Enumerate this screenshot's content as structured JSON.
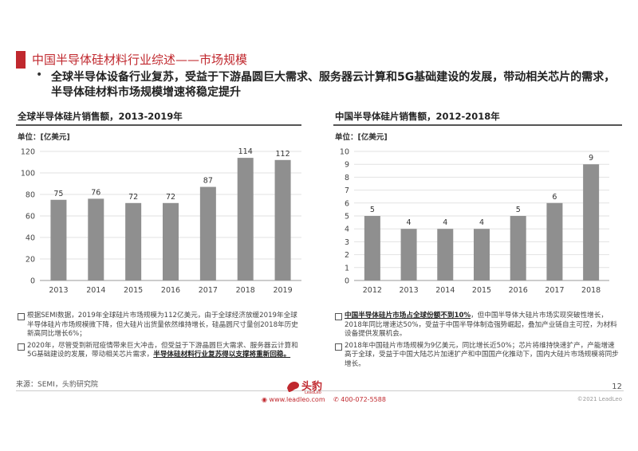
{
  "header": {
    "title": "中国半导体硅材料行业综述——市场规模",
    "bullet": "全球半导体设备行业复苏，受益于下游晶圆巨大需求、服务器云计算和5G基础建设的发展，带动相关芯片的需求，半导体硅材料市场规模增速将稳定提升"
  },
  "left_chart": {
    "title": "全球半导体硅片销售额，2013-2019年",
    "unit": "单位：[亿美元]",
    "notes": {
      "n1": "根据SEMI数据，2019年全球硅片市场规模为112亿美元，由于全球经济放缓2019年全球半导体硅片市场规模微下降，但大硅片出货量依然维持增长，硅晶圆尺寸量创2018年历史新高同比增长6%；",
      "n2_plain": "2020年，尽管受到新冠疫情带来巨大冲击，但受益于下游晶圆巨大需求、服务器云计算和5G基础建设的发展，带动相关芯片需求，",
      "n2_bold": "半导体硅材料行业复苏得以支撑将重新回稳。"
    }
  },
  "right_chart": {
    "title": "中国半导体硅片销售额，2012-2018年",
    "unit": "单位：[亿美元]",
    "notes": {
      "n1_bold": "中国半导体硅片市场占全球份额不到10%",
      "n1_plain": "，但中国半导体大硅片市场实现突破性增长，2018年同比增速达50%，受益于中国半导体制造强势崛起，叠加产业链自主可控，为材料设备提供发展机会。",
      "n2": "2018年中国硅片市场规模为9亿美元，同比增长近50%；芯片将维持快速扩产，产能增速高于全球，受益于中国大陆芯片加速扩产和中国国产化推动下，国内大硅片市场规模将同步增长。"
    }
  },
  "footer": {
    "source": "来源：SEMI，头豹研究院",
    "page": "12",
    "logo_text": "头豹",
    "logo_sub": "LeadLeo",
    "website": "www.leadleo.com",
    "phone": "400-072-5588",
    "copyright": "©2021 LeadLeo"
  },
  "chart_data": [
    {
      "type": "bar",
      "categories": [
        "2013",
        "2014",
        "2015",
        "2016",
        "2017",
        "2018",
        "2019"
      ],
      "values": [
        75,
        76,
        72,
        72,
        87,
        114,
        112
      ],
      "title": "全球半导体硅片销售额，2013-2019年",
      "ylabel": "单位：[亿美元]",
      "ylim": [
        0,
        120
      ],
      "yticks": [
        0,
        20,
        40,
        60,
        80,
        100,
        120
      ],
      "grid": true,
      "color": "#8f8f8f"
    },
    {
      "type": "bar",
      "categories": [
        "2012",
        "2013",
        "2014",
        "2015",
        "2016",
        "2017",
        "2018"
      ],
      "values": [
        5,
        4,
        4,
        4,
        5,
        6,
        9
      ],
      "title": "中国半导体硅片销售额，2012-2018年",
      "ylabel": "单位：[亿美元]",
      "ylim": [
        0,
        10
      ],
      "yticks": [
        0,
        1,
        2,
        3,
        4,
        5,
        6,
        7,
        8,
        9,
        10
      ],
      "grid": true,
      "color": "#8f8f8f"
    }
  ]
}
